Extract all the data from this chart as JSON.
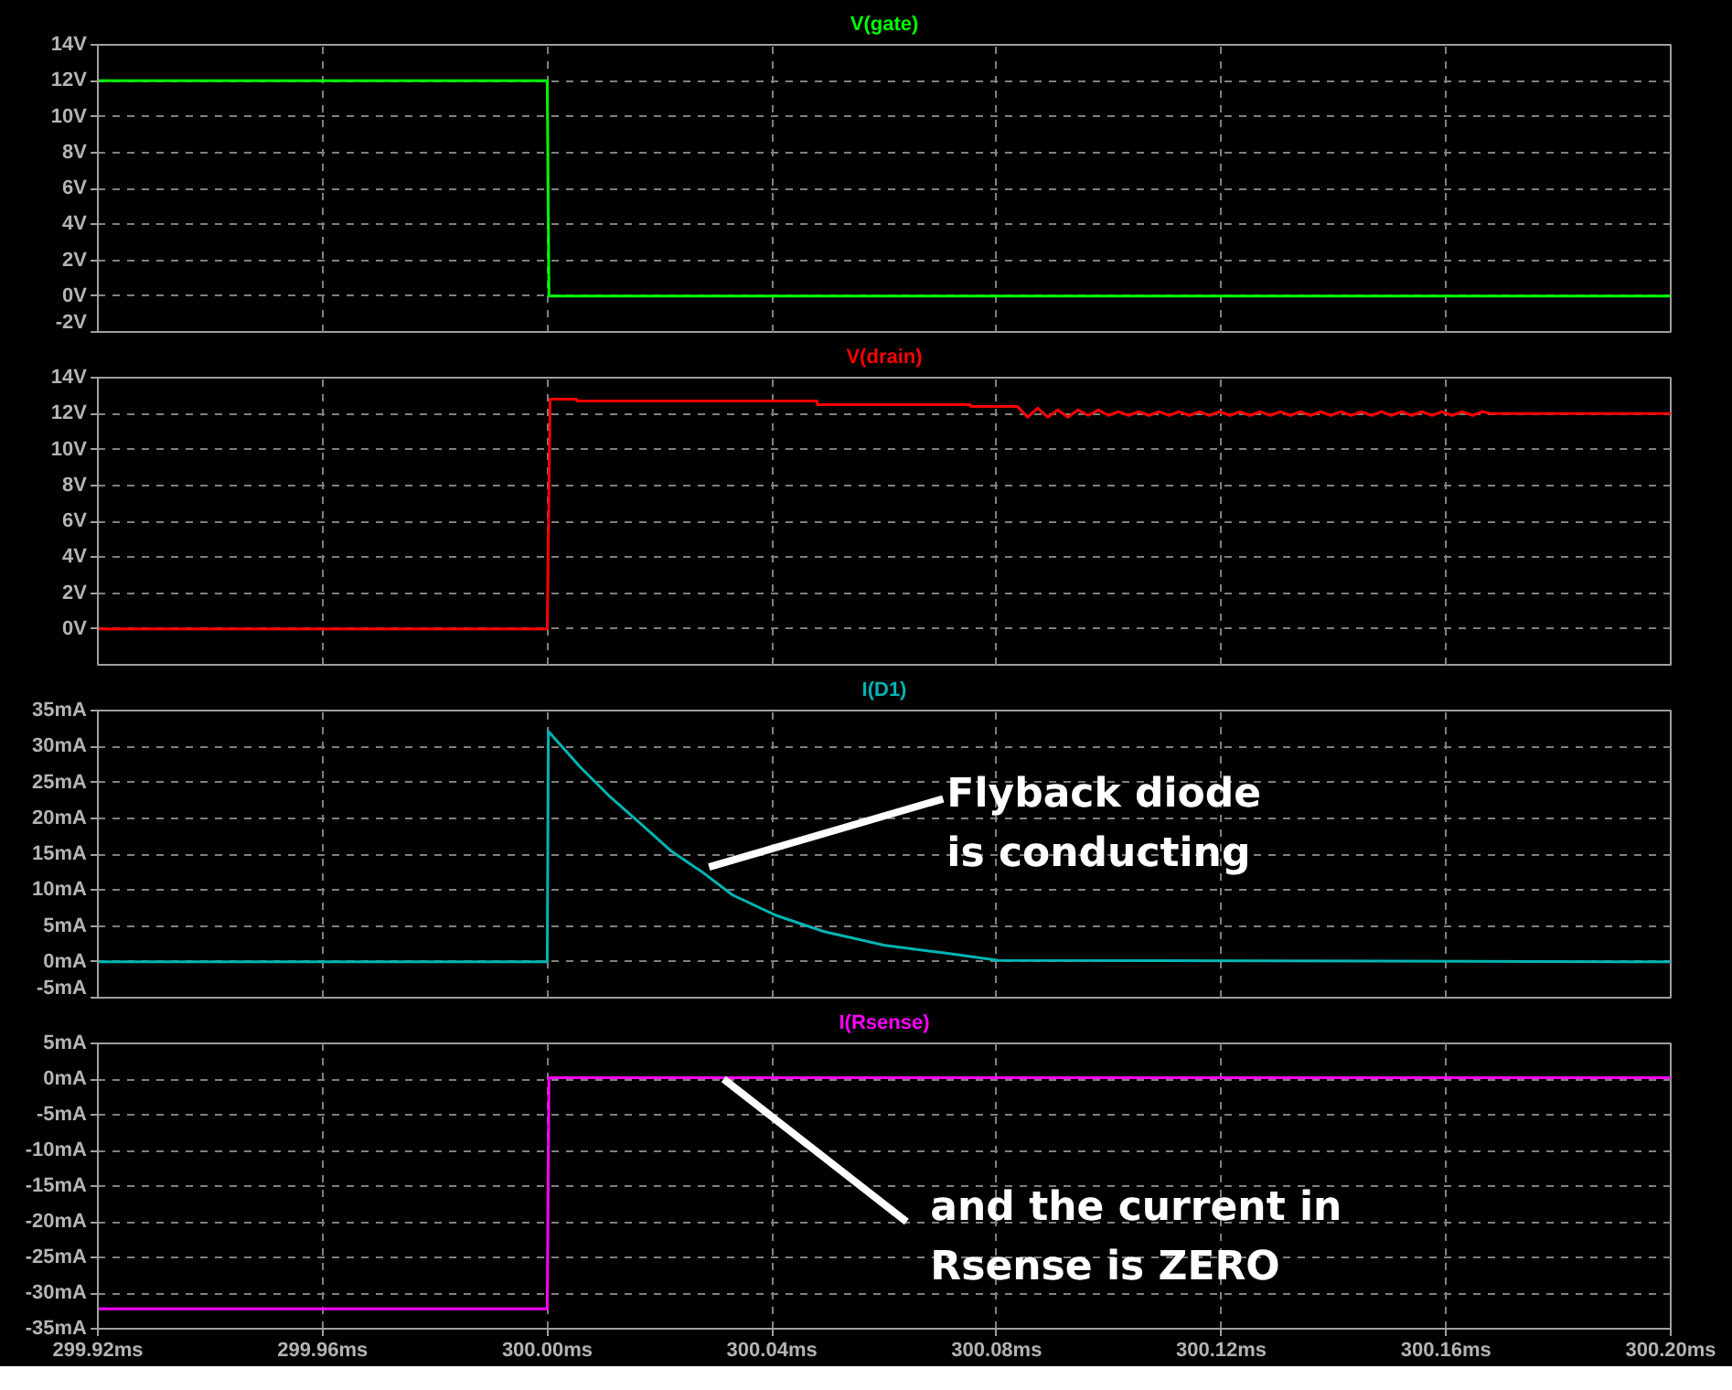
{
  "chart_data": [
    {
      "type": "line",
      "title": "V(gate)",
      "xlim": [
        299.92,
        300.2
      ],
      "xticks": [
        299.92,
        299.96,
        300.0,
        300.04,
        300.08,
        300.12,
        300.16,
        300.2
      ],
      "ylim": [
        -2,
        14
      ],
      "yticks": [
        {
          "value": 14,
          "label": "14V"
        },
        {
          "value": 12,
          "label": "12V"
        },
        {
          "value": 10,
          "label": "10V"
        },
        {
          "value": 8,
          "label": "8V"
        },
        {
          "value": 6,
          "label": "6V"
        },
        {
          "value": 4,
          "label": "4V"
        },
        {
          "value": 2,
          "label": "2V"
        },
        {
          "value": 0,
          "label": "0V"
        },
        {
          "value": -2,
          "label": "-2V"
        }
      ],
      "grid": true,
      "tick_labels": "y",
      "series": [
        {
          "color": "#00ff00",
          "x": [
            299.92,
            300.0,
            300.0003,
            300.2
          ],
          "values": [
            12,
            12,
            0,
            0
          ]
        }
      ]
    },
    {
      "type": "line",
      "title": "V(drain)",
      "xlim": [
        299.92,
        300.2
      ],
      "xticks": [
        299.92,
        299.96,
        300.0,
        300.04,
        300.08,
        300.12,
        300.16,
        300.2
      ],
      "ylim": [
        -2,
        14
      ],
      "yticks": [
        {
          "value": 14,
          "label": "14V"
        },
        {
          "value": 12,
          "label": "12V"
        },
        {
          "value": 10,
          "label": "10V"
        },
        {
          "value": 8,
          "label": "8V"
        },
        {
          "value": 6,
          "label": "6V"
        },
        {
          "value": 4,
          "label": "4V"
        },
        {
          "value": 2,
          "label": "2V"
        },
        {
          "value": 0,
          "label": "0V"
        }
      ],
      "grid": true,
      "tick_labels": "y",
      "series": [
        {
          "color": "#ff0000",
          "x": [
            299.92,
            300.0,
            300.0005,
            300.0052,
            300.0053,
            300.048,
            300.0481,
            300.0753,
            300.0754,
            300.0837,
            300.0855,
            300.0873,
            300.0891,
            300.0909,
            300.0927,
            300.0945,
            300.0963,
            300.0981,
            300.0999,
            300.1017,
            300.1035,
            300.1053,
            300.1071,
            300.1089,
            300.1107,
            300.1125,
            300.1143,
            300.1161,
            300.1179,
            300.1197,
            300.1215,
            300.1233,
            300.1251,
            300.1269,
            300.1287,
            300.1305,
            300.1323,
            300.1341,
            300.1359,
            300.1377,
            300.1395,
            300.1413,
            300.1431,
            300.1449,
            300.1467,
            300.1485,
            300.1503,
            300.1521,
            300.1539,
            300.1557,
            300.1575,
            300.1593,
            300.1611,
            300.1629,
            300.1647,
            300.1665,
            300.168,
            300.2
          ],
          "values": [
            0,
            0,
            12.8,
            12.8,
            12.7,
            12.7,
            12.5,
            12.5,
            12.4,
            12.4,
            11.8,
            12.3,
            11.8,
            12.2,
            11.8,
            12.2,
            11.9,
            12.2,
            11.9,
            12.1,
            11.9,
            12.1,
            11.9,
            12.1,
            11.9,
            12.1,
            11.9,
            12.1,
            11.9,
            12.1,
            11.9,
            12.1,
            11.9,
            12.1,
            11.9,
            12.1,
            11.9,
            12.1,
            11.9,
            12.1,
            11.9,
            12.1,
            11.9,
            12.1,
            11.9,
            12.1,
            11.9,
            12.1,
            11.9,
            12.1,
            11.9,
            12.1,
            11.9,
            12.1,
            11.9,
            12.1,
            12.0,
            12.0
          ]
        }
      ]
    },
    {
      "type": "line",
      "title": "I(D1)",
      "xlim": [
        299.92,
        300.2
      ],
      "xticks": [
        299.92,
        299.96,
        300.0,
        300.04,
        300.08,
        300.12,
        300.16,
        300.2
      ],
      "ylim": [
        -5,
        35
      ],
      "yticks": [
        {
          "value": 35,
          "label": "35mA"
        },
        {
          "value": 30,
          "label": "30mA"
        },
        {
          "value": 25,
          "label": "25mA"
        },
        {
          "value": 20,
          "label": "20mA"
        },
        {
          "value": 15,
          "label": "15mA"
        },
        {
          "value": 10,
          "label": "10mA"
        },
        {
          "value": 5,
          "label": "5mA"
        },
        {
          "value": 0,
          "label": "0mA"
        },
        {
          "value": -5,
          "label": "-5mA"
        }
      ],
      "grid": true,
      "tick_labels": "y",
      "annotations": [
        {
          "text": "Flyback diode\nis conducting",
          "x": 300.0288,
          "y": 13.2
        }
      ],
      "series": [
        {
          "color": "#00b4b4",
          "x": [
            299.92,
            300.0,
            300.0002,
            300.0059,
            300.0113,
            300.0167,
            300.0221,
            300.0276,
            300.033,
            300.0406,
            300.0493,
            300.0601,
            300.071,
            300.0803,
            300.2
          ],
          "values": [
            0,
            0,
            32.1,
            27.1,
            22.9,
            19.2,
            15.4,
            12.5,
            9.3,
            6.5,
            4.2,
            2.3,
            1.2,
            0.2,
            0
          ]
        }
      ]
    },
    {
      "type": "line",
      "title": "I(Rsense)",
      "xlim": [
        299.92,
        300.2
      ],
      "xticks": [
        {
          "value": 299.92,
          "label": "299.92ms"
        },
        {
          "value": 299.96,
          "label": "299.96ms"
        },
        {
          "value": 300.0,
          "label": "300.00ms"
        },
        {
          "value": 300.04,
          "label": "300.04ms"
        },
        {
          "value": 300.08,
          "label": "300.08ms"
        },
        {
          "value": 300.12,
          "label": "300.12ms"
        },
        {
          "value": 300.16,
          "label": "300.16ms"
        },
        {
          "value": 300.2,
          "label": "300.20ms"
        }
      ],
      "ylim": [
        -35,
        5
      ],
      "yticks": [
        {
          "value": 5,
          "label": "5mA"
        },
        {
          "value": 0,
          "label": "0mA"
        },
        {
          "value": -5,
          "label": "-5mA"
        },
        {
          "value": -10,
          "label": "-10mA"
        },
        {
          "value": -15,
          "label": "-15mA"
        },
        {
          "value": -20,
          "label": "-20mA"
        },
        {
          "value": -25,
          "label": "-25mA"
        },
        {
          "value": -30,
          "label": "-30mA"
        },
        {
          "value": -35,
          "label": "-35mA"
        }
      ],
      "grid": true,
      "annotations": [
        {
          "text": "and the current in\nRsense is ZERO",
          "x": 300.0314,
          "y": 0
        }
      ],
      "series": [
        {
          "color": "#ff00ff",
          "x": [
            299.92,
            300.0,
            300.0003,
            300.2
          ],
          "values": [
            -32.2,
            -32.2,
            0.2,
            0.2
          ]
        }
      ]
    }
  ]
}
